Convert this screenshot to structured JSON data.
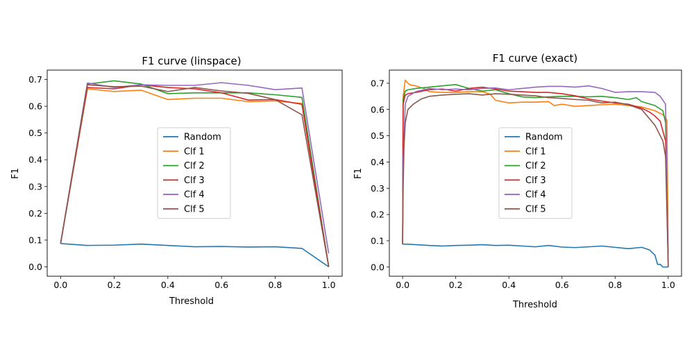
{
  "colors": {
    "Random": "#1f77b4",
    "Clf 1": "#ff7f0e",
    "Clf 2": "#2ca02c",
    "Clf 3": "#d62728",
    "Clf 4": "#9467bd",
    "Clf 5": "#8c564b"
  },
  "chart_data": [
    {
      "type": "line",
      "title": "F1 curve (linspace)",
      "xlabel": "Threshold",
      "ylabel": "F1",
      "xlim": [
        -0.05,
        1.05
      ],
      "ylim": [
        -0.035,
        0.735
      ],
      "xticks": [
        "0.0",
        "0.2",
        "0.4",
        "0.6",
        "0.8",
        "1.0"
      ],
      "yticks": [
        "0.0",
        "0.1",
        "0.2",
        "0.3",
        "0.4",
        "0.5",
        "0.6",
        "0.7"
      ],
      "legend_position": "center",
      "series": [
        {
          "name": "Random",
          "x": [
            0,
            0.1,
            0.2,
            0.3,
            0.4,
            0.5,
            0.6,
            0.7,
            0.8,
            0.9,
            1.0
          ],
          "y": [
            0.087,
            0.08,
            0.081,
            0.085,
            0.08,
            0.075,
            0.076,
            0.074,
            0.075,
            0.069,
            0.0
          ]
        },
        {
          "name": "Clf 1",
          "x": [
            0,
            0.1,
            0.2,
            0.3,
            0.4,
            0.5,
            0.6,
            0.7,
            0.8,
            0.9,
            1.0
          ],
          "y": [
            0.087,
            0.665,
            0.655,
            0.66,
            0.625,
            0.63,
            0.63,
            0.617,
            0.62,
            0.61,
            0.0
          ]
        },
        {
          "name": "Clf 2",
          "x": [
            0,
            0.1,
            0.2,
            0.3,
            0.4,
            0.5,
            0.6,
            0.7,
            0.8,
            0.9,
            1.0
          ],
          "y": [
            0.087,
            0.683,
            0.695,
            0.683,
            0.647,
            0.65,
            0.65,
            0.65,
            0.643,
            0.633,
            0.0
          ]
        },
        {
          "name": "Clf 3",
          "x": [
            0,
            0.1,
            0.2,
            0.3,
            0.4,
            0.5,
            0.6,
            0.7,
            0.8,
            0.9,
            1.0
          ],
          "y": [
            0.087,
            0.67,
            0.665,
            0.68,
            0.67,
            0.665,
            0.65,
            0.623,
            0.625,
            0.607,
            0.0
          ]
        },
        {
          "name": "Clf 4",
          "x": [
            0,
            0.1,
            0.2,
            0.3,
            0.4,
            0.5,
            0.6,
            0.7,
            0.8,
            0.9,
            1.0
          ],
          "y": [
            0.087,
            0.687,
            0.67,
            0.68,
            0.678,
            0.678,
            0.688,
            0.678,
            0.662,
            0.668,
            0.05
          ]
        },
        {
          "name": "Clf 5",
          "x": [
            0,
            0.1,
            0.2,
            0.3,
            0.4,
            0.5,
            0.6,
            0.7,
            0.8,
            0.9,
            1.0
          ],
          "y": [
            0.087,
            0.68,
            0.673,
            0.675,
            0.655,
            0.67,
            0.657,
            0.648,
            0.625,
            0.568,
            0.0
          ]
        }
      ]
    },
    {
      "type": "line",
      "title": "F1 curve (exact)",
      "xlabel": "Threshold",
      "ylabel": "F1",
      "xlim": [
        -0.05,
        1.05
      ],
      "ylim": [
        -0.035,
        0.75
      ],
      "xticks": [
        "0.0",
        "0.2",
        "0.4",
        "0.6",
        "0.8",
        "1.0"
      ],
      "yticks": [
        "0.0",
        "0.1",
        "0.2",
        "0.3",
        "0.4",
        "0.5",
        "0.6",
        "0.7"
      ],
      "legend_position": "center",
      "series": [
        {
          "name": "Random",
          "x": [
            0,
            0.02,
            0.05,
            0.1,
            0.15,
            0.2,
            0.25,
            0.3,
            0.35,
            0.4,
            0.45,
            0.5,
            0.55,
            0.6,
            0.65,
            0.7,
            0.75,
            0.8,
            0.85,
            0.9,
            0.93,
            0.95,
            0.96,
            0.97,
            0.98,
            1.0
          ],
          "y": [
            0.087,
            0.087,
            0.085,
            0.082,
            0.08,
            0.082,
            0.083,
            0.085,
            0.082,
            0.083,
            0.08,
            0.077,
            0.082,
            0.076,
            0.074,
            0.077,
            0.08,
            0.075,
            0.07,
            0.075,
            0.065,
            0.045,
            0.01,
            0.01,
            0.0,
            0.0
          ]
        },
        {
          "name": "Clf 1",
          "x": [
            0,
            0.002,
            0.01,
            0.02,
            0.03,
            0.05,
            0.08,
            0.1,
            0.15,
            0.2,
            0.25,
            0.3,
            0.33,
            0.35,
            0.4,
            0.45,
            0.5,
            0.55,
            0.57,
            0.6,
            0.65,
            0.7,
            0.75,
            0.8,
            0.85,
            0.9,
            0.95,
            0.98,
            0.995,
            1.0
          ],
          "y": [
            0.087,
            0.65,
            0.712,
            0.7,
            0.693,
            0.69,
            0.68,
            0.668,
            0.665,
            0.665,
            0.668,
            0.668,
            0.658,
            0.635,
            0.625,
            0.628,
            0.628,
            0.63,
            0.615,
            0.62,
            0.612,
            0.615,
            0.618,
            0.62,
            0.615,
            0.61,
            0.595,
            0.58,
            0.56,
            0.05
          ]
        },
        {
          "name": "Clf 2",
          "x": [
            0,
            0.002,
            0.01,
            0.02,
            0.05,
            0.1,
            0.15,
            0.2,
            0.25,
            0.3,
            0.35,
            0.4,
            0.45,
            0.5,
            0.55,
            0.6,
            0.65,
            0.7,
            0.75,
            0.8,
            0.85,
            0.88,
            0.9,
            0.95,
            0.98,
            0.99,
            1.0
          ],
          "y": [
            0.087,
            0.64,
            0.67,
            0.675,
            0.68,
            0.685,
            0.69,
            0.695,
            0.68,
            0.67,
            0.675,
            0.66,
            0.648,
            0.645,
            0.648,
            0.65,
            0.65,
            0.648,
            0.65,
            0.645,
            0.638,
            0.645,
            0.63,
            0.615,
            0.595,
            0.55,
            0.0
          ]
        },
        {
          "name": "Clf 3",
          "x": [
            0,
            0.002,
            0.01,
            0.02,
            0.05,
            0.1,
            0.15,
            0.2,
            0.25,
            0.3,
            0.35,
            0.4,
            0.45,
            0.5,
            0.55,
            0.6,
            0.65,
            0.7,
            0.75,
            0.8,
            0.85,
            0.9,
            0.93,
            0.95,
            0.97,
            0.99,
            1.0
          ],
          "y": [
            0.087,
            0.62,
            0.655,
            0.66,
            0.665,
            0.675,
            0.678,
            0.67,
            0.68,
            0.685,
            0.678,
            0.67,
            0.668,
            0.665,
            0.665,
            0.66,
            0.652,
            0.64,
            0.632,
            0.625,
            0.62,
            0.605,
            0.59,
            0.575,
            0.555,
            0.48,
            0.02
          ]
        },
        {
          "name": "Clf 4",
          "x": [
            0,
            0.002,
            0.01,
            0.02,
            0.05,
            0.1,
            0.15,
            0.2,
            0.25,
            0.3,
            0.35,
            0.4,
            0.45,
            0.5,
            0.55,
            0.6,
            0.65,
            0.7,
            0.75,
            0.8,
            0.85,
            0.9,
            0.95,
            0.97,
            0.99,
            1.0
          ],
          "y": [
            0.087,
            0.4,
            0.62,
            0.65,
            0.668,
            0.68,
            0.675,
            0.678,
            0.675,
            0.68,
            0.682,
            0.675,
            0.68,
            0.685,
            0.688,
            0.688,
            0.685,
            0.69,
            0.68,
            0.665,
            0.668,
            0.668,
            0.665,
            0.65,
            0.62,
            0.0
          ]
        },
        {
          "name": "Clf 5",
          "x": [
            0,
            0.002,
            0.005,
            0.01,
            0.02,
            0.04,
            0.07,
            0.1,
            0.15,
            0.2,
            0.25,
            0.3,
            0.35,
            0.4,
            0.45,
            0.5,
            0.55,
            0.6,
            0.65,
            0.7,
            0.75,
            0.8,
            0.85,
            0.9,
            0.95,
            0.98,
            0.99,
            1.0
          ],
          "y": [
            0.087,
            0.3,
            0.45,
            0.55,
            0.6,
            0.62,
            0.64,
            0.65,
            0.655,
            0.658,
            0.66,
            0.655,
            0.66,
            0.658,
            0.655,
            0.652,
            0.645,
            0.642,
            0.638,
            0.635,
            0.625,
            0.628,
            0.618,
            0.6,
            0.54,
            0.48,
            0.42,
            0.0
          ]
        }
      ]
    }
  ]
}
